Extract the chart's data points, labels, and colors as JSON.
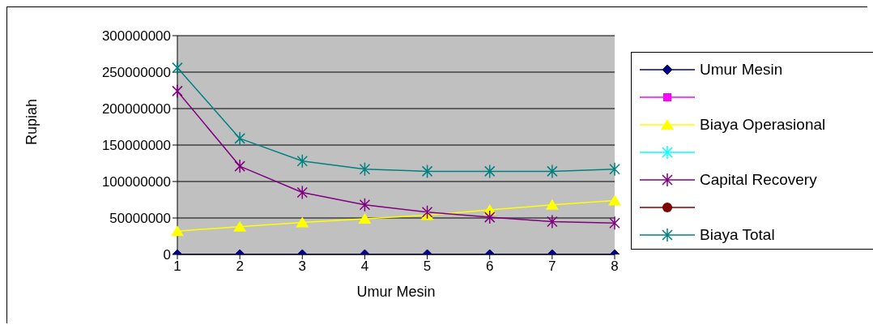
{
  "chart_data": {
    "type": "line",
    "xlabel": "Umur Mesin",
    "ylabel": "Rupiah",
    "categories": [
      "1",
      "2",
      "3",
      "4",
      "5",
      "6",
      "7",
      "8"
    ],
    "series": [
      {
        "name": "Umur Mesin",
        "color": "#000080",
        "marker": "diamond",
        "values": [
          0,
          0,
          0,
          0,
          0,
          0,
          0,
          0
        ]
      },
      {
        "color": "#ff00ff",
        "marker": "square",
        "values": [
          null,
          null,
          null,
          null,
          null,
          null,
          null,
          null
        ]
      },
      {
        "name": "Biaya Operasional",
        "color": "#ffff00",
        "marker": "triangle",
        "values": [
          32000000,
          38000000,
          44000000,
          49000000,
          54000000,
          61000000,
          68000000,
          74000000
        ]
      },
      {
        "color": "#00ffff",
        "marker": "cross",
        "values": [
          null,
          null,
          null,
          null,
          null,
          null,
          null,
          null
        ]
      },
      {
        "name": "Capital Recovery",
        "color": "#800080",
        "marker": "cross",
        "values": [
          224000000,
          121000000,
          85000000,
          68000000,
          58000000,
          51000000,
          45000000,
          43000000
        ]
      },
      {
        "color": "#800000",
        "marker": "circle",
        "values": [
          null,
          null,
          null,
          null,
          null,
          null,
          null,
          null
        ]
      },
      {
        "name": "Biaya Total",
        "color": "#008080",
        "marker": "cross",
        "values": [
          256000000,
          159000000,
          128000000,
          117000000,
          114000000,
          114000000,
          114000000,
          117000000
        ]
      }
    ],
    "ylim": [
      0,
      300000000
    ],
    "yticks": [
      0,
      50000000,
      100000000,
      150000000,
      200000000,
      250000000,
      300000000
    ],
    "grid": "y",
    "legend": "right"
  }
}
